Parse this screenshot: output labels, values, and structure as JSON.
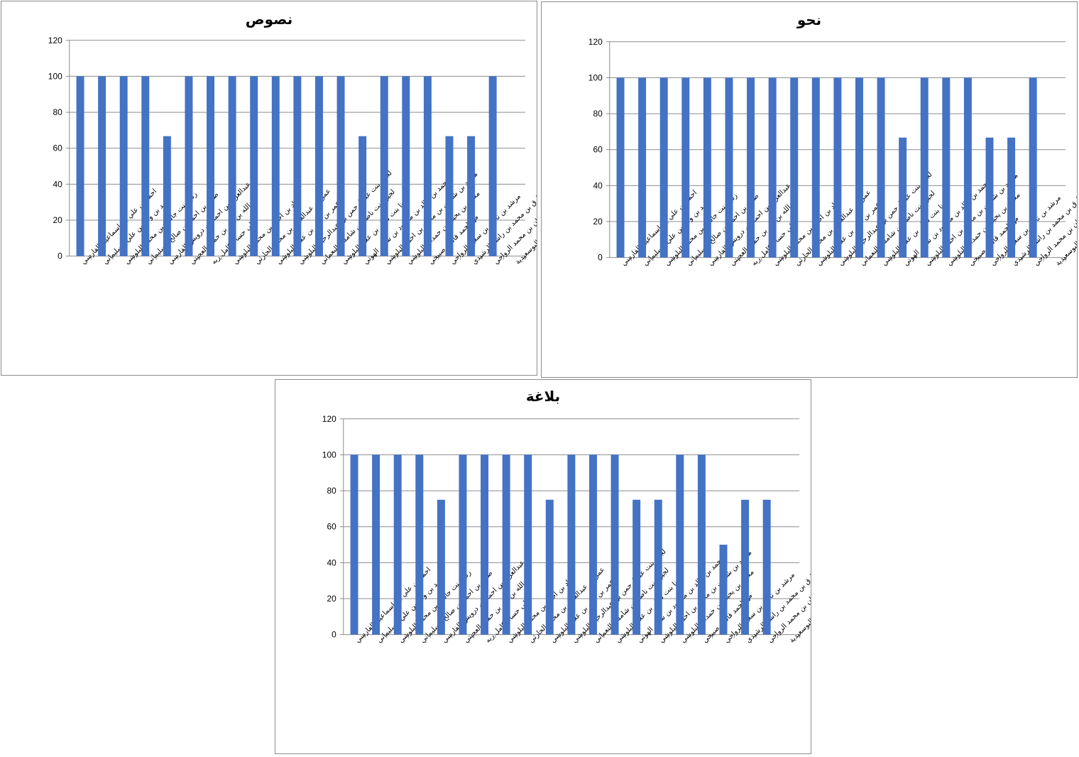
{
  "chart_data": [
    {
      "type": "bar",
      "title": "نصوص",
      "ylim": [
        0,
        120
      ],
      "yticks": [
        0,
        20,
        40,
        60,
        80,
        100,
        120
      ],
      "grid": true,
      "color": "#4472C4",
      "categories": [
        "احمد بن علي بن اسماعيل الفارسي",
        "حمد بن وليد بن علي السليماني",
        "زناخ بنت جاسم بن محمد البلوشي",
        "صالح بن احمد بن صالح السليماني",
        "عبدالعزيز بن احمد بن درويش الفارسي",
        "عبدالله بن بدر بن حمود العجيتي",
        "علي حسام كامل ربه",
        "عماد بن احمد بن محمد البلوشي",
        "عمر بن عبدالعزيز بن محمد الحارثي",
        "عمر بن نذير بن علام البلوشي",
        "لجين بنت عبدالرحمن بن عبدالرحيم البلوشي",
        "لجين بنت ناصر بن شامس النعماني",
        "لينا بنت ناظر بن علام البلوشي",
        "محمد بن خالد بن محمود بن سالم الهوتي",
        "محمد بن شاهين بن محمد بن احمد البلوشي",
        "محمد بن يحيى بن حمدان البلوشي",
        "مها احمد قاسم صبيحي",
        "مرشد بن ناصر بن سعيد الرواحي",
        "طارق بن محمد بن راشد الرشيدي",
        "ليث بن سليمان بن محمد الرواحي",
        "شمسة بنت سيف بن خلفان البوسعيدية"
      ],
      "values": [
        100,
        100,
        100,
        100,
        66.7,
        100,
        100,
        100,
        100,
        100,
        100,
        100,
        100,
        66.7,
        100,
        100,
        100,
        66.7,
        66.7,
        100,
        0
      ]
    },
    {
      "type": "bar",
      "title": "نحو",
      "ylim": [
        0,
        120
      ],
      "yticks": [
        0,
        20,
        40,
        60,
        80,
        100,
        120
      ],
      "grid": true,
      "color": "#4472C4",
      "categories": [
        "احمد بن علي بن اسماعيل الفارسي",
        "حمد بن وليد بن علي السليماني",
        "زناخ بنت جاسم بن محمد البلوشي",
        "صالح بن احمد بن صالح السليماني",
        "عبدالعزيز بن احمد بن درويش الفارسي",
        "عبدالله بن بدر بن حمود العجيتي",
        "علي حسام كامل ربه",
        "عماد بن احمد بن محمد البلوشي",
        "عمر بن عبدالعزيز بن محمد الحارثي",
        "عمر بن نذير بن علام البلوشي",
        "لجين بنت عبدالرحمن بن عبدالرحيم البلوشي",
        "لجين بنت ناصر بن شامس النعماني",
        "لينا بنت ناظر بن علام البلوشي",
        "محمد بن خالد بن محمود بن سالم الهوتي",
        "محمد بن شاهين بن محمد بن احمد البلوشي",
        "محمد بن يحيى بن حمدان البلوشي",
        "مها احمد قاسم صبيحي",
        "مرشد بن ناصر بن سعيد الرواحي",
        "طارق بن محمد بن راشد الرشيدي",
        "ليث بن سليمان بن محمد الرواحي",
        "شمسة بنت سيف بن خلفان البوسعيدية"
      ],
      "values": [
        100,
        100,
        100,
        100,
        100,
        100,
        100,
        100,
        100,
        100,
        100,
        100,
        100,
        66.7,
        100,
        100,
        100,
        66.7,
        66.7,
        100,
        0
      ]
    },
    {
      "type": "bar",
      "title": "بلاغة",
      "ylim": [
        0,
        120
      ],
      "yticks": [
        0,
        20,
        40,
        60,
        80,
        100,
        120
      ],
      "grid": true,
      "color": "#4472C4",
      "categories": [
        "احمد بن علي بن اسماعيل الفارسي",
        "حمد بن وليد بن علي السليماني",
        "زناخ بنت جاسم بن محمد البلوشي",
        "صالح بن احمد بن صالح السليماني",
        "عبدالعزيز بن احمد بن درويش الفارسي",
        "عبدالله بن بدر بن حمود العجيتي",
        "علي حسام كامل ربه",
        "عماد بن احمد بن محمد البلوشي",
        "عمر بن عبدالعزيز بن محمد الحارثي",
        "عمر بن نذير بن علام البلوشي",
        "لجين بنت عبدالرحمن بن عبدالرحيم البلوشي",
        "لجين بنت ناصر بن شامس النعماني",
        "لينا بنت ناظر بن علام البلوشي",
        "محمد بن خالد بن محمود بن سالم الهوتي",
        "محمد بن شاهين بن محمد بن احمد البلوشي",
        "محمد بن يحيى بن حمدان البلوشي",
        "مها احمد قاسم صبيحي",
        "مرشد بن ناصر بن سعيد الرواحي",
        "طارق بن محمد بن راشد الرشيدي",
        "ليث بن سليمان بن محمد الرواحي",
        "شمسة بنت سيف بن خلفان البوسعيدية"
      ],
      "values": [
        100,
        100,
        100,
        100,
        75,
        100,
        100,
        100,
        100,
        75,
        100,
        100,
        100,
        75,
        75,
        100,
        100,
        50,
        75,
        75,
        0
      ]
    }
  ]
}
